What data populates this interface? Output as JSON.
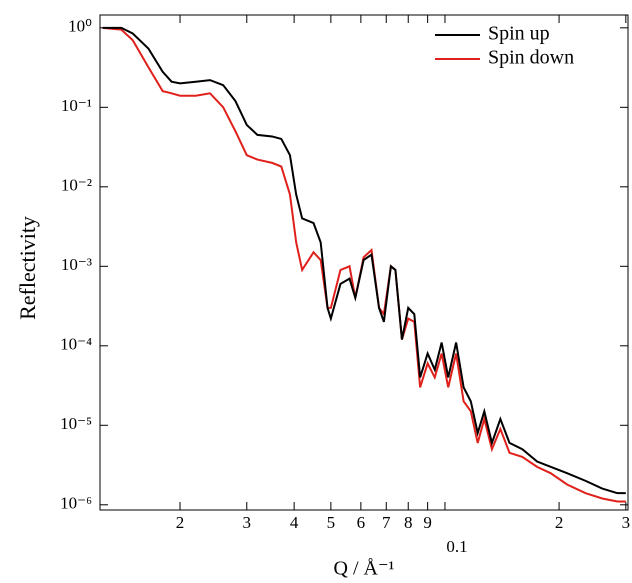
{
  "chart_data": {
    "type": "line",
    "xlabel": "Q / Å⁻¹",
    "ylabel": "Reflectivity",
    "xscale": "log",
    "yscale": "log",
    "xlim": [
      0.0123,
      0.304
    ],
    "ylim": [
      8.6e-07,
      1.45
    ],
    "xticks": [
      {
        "value": 0.02,
        "label": "2"
      },
      {
        "value": 0.03,
        "label": "3"
      },
      {
        "value": 0.04,
        "label": "4"
      },
      {
        "value": 0.05,
        "label": "5"
      },
      {
        "value": 0.06,
        "label": "6"
      },
      {
        "value": 0.07,
        "label": "7"
      },
      {
        "value": 0.08,
        "label": "8"
      },
      {
        "value": 0.09,
        "label": "9"
      },
      0.1,
      {
        "value": 0.2,
        "label": "2"
      },
      {
        "value": 0.3,
        "label": "3"
      }
    ],
    "yticks": [
      {
        "value": 1,
        "label": "10⁰"
      },
      {
        "value": 0.1,
        "label": "10⁻¹"
      },
      {
        "value": 0.01,
        "label": "10⁻²"
      },
      {
        "value": 0.001,
        "label": "10⁻³"
      },
      {
        "value": 0.0001,
        "label": "10⁻⁴"
      },
      {
        "value": 1e-05,
        "label": "10⁻⁵"
      },
      {
        "value": 1e-06,
        "label": "10⁻⁶"
      }
    ],
    "legend": "upper right",
    "x": [
      0.0125,
      0.014,
      0.015,
      0.0165,
      0.018,
      0.019,
      0.02,
      0.022,
      0.024,
      0.026,
      0.028,
      0.03,
      0.032,
      0.035,
      0.037,
      0.039,
      0.0405,
      0.042,
      0.045,
      0.047,
      0.049,
      0.05,
      0.053,
      0.056,
      0.058,
      0.061,
      0.064,
      0.067,
      0.069,
      0.072,
      0.074,
      0.077,
      0.08,
      0.083,
      0.086,
      0.09,
      0.094,
      0.098,
      0.102,
      0.107,
      0.112,
      0.117,
      0.122,
      0.127,
      0.133,
      0.14,
      0.148,
      0.16,
      0.175,
      0.19,
      0.21,
      0.235,
      0.26,
      0.285,
      0.3
    ],
    "series": [
      {
        "name": "Spin up",
        "color": "#000000",
        "values": [
          1.0,
          1.0,
          0.85,
          0.55,
          0.28,
          0.21,
          0.2,
          0.21,
          0.22,
          0.19,
          0.12,
          0.06,
          0.045,
          0.043,
          0.04,
          0.025,
          0.008,
          0.004,
          0.0035,
          0.002,
          0.0003,
          0.00022,
          0.0006,
          0.0007,
          0.0004,
          0.0012,
          0.0014,
          0.0003,
          0.0002,
          0.001,
          0.0009,
          0.00012,
          0.0003,
          0.00025,
          4e-05,
          8e-05,
          5e-05,
          0.00011,
          4e-05,
          0.00011,
          3e-05,
          2e-05,
          8e-06,
          1.5e-05,
          6e-06,
          1.2e-05,
          6e-06,
          5e-06,
          3.5e-06,
          3e-06,
          2.5e-06,
          2e-06,
          1.6e-06,
          1.4e-06,
          1.4e-06
        ]
      },
      {
        "name": "Spin down",
        "color": "#e0201b",
        "values": [
          1.0,
          0.95,
          0.7,
          0.32,
          0.16,
          0.15,
          0.14,
          0.14,
          0.15,
          0.1,
          0.05,
          0.025,
          0.022,
          0.02,
          0.018,
          0.008,
          0.002,
          0.0009,
          0.0015,
          0.0012,
          0.0003,
          0.0003,
          0.0009,
          0.001,
          0.0004,
          0.0013,
          0.0016,
          0.0003,
          0.00025,
          0.001,
          0.0009,
          0.00012,
          0.00022,
          0.0002,
          3e-05,
          6e-05,
          4e-05,
          8e-05,
          3e-05,
          8e-05,
          2e-05,
          1.5e-05,
          6e-06,
          1.2e-05,
          5e-06,
          9e-06,
          4.5e-06,
          4e-06,
          3e-06,
          2.5e-06,
          1.8e-06,
          1.4e-06,
          1.2e-06,
          1.1e-06,
          1.1e-06
        ]
      }
    ]
  }
}
